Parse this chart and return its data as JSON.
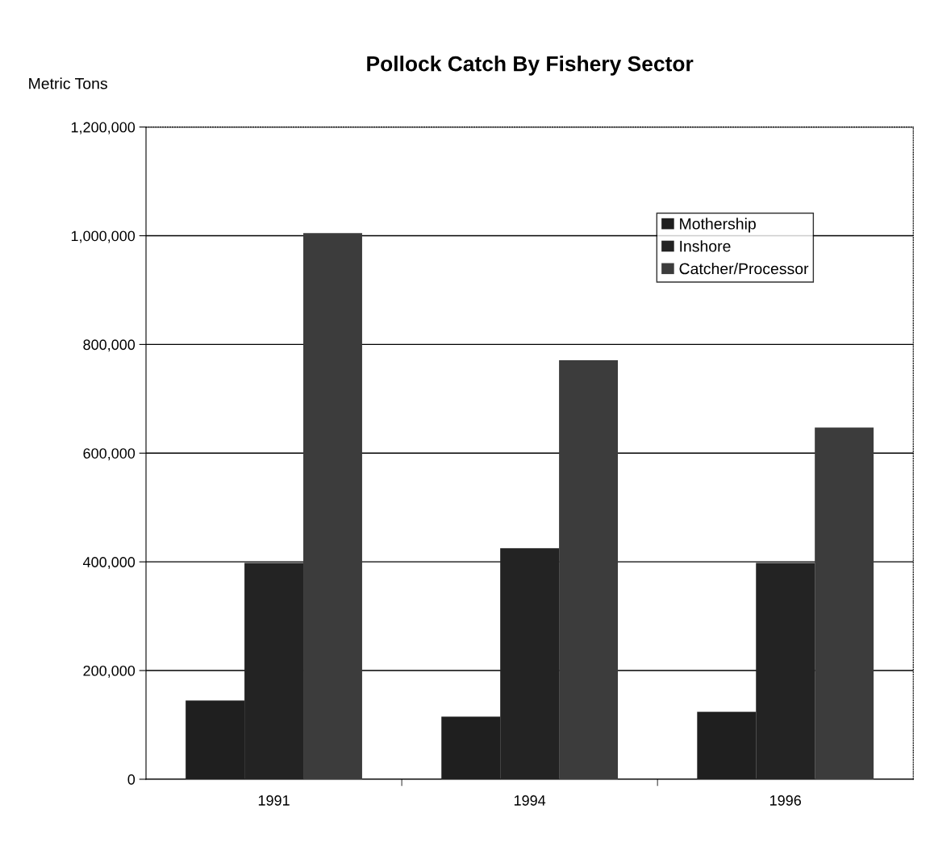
{
  "chart_data": {
    "type": "bar",
    "title": "Pollock Catch By Fishery Sector",
    "ylabel": "Metric Tons",
    "categories": [
      "1991",
      "1994",
      "1996"
    ],
    "series": [
      {
        "name": "Mothership",
        "color": "#1f1f1f",
        "values": [
          145000,
          115000,
          124000
        ]
      },
      {
        "name": "Inshore",
        "color": "#232323",
        "values": [
          398000,
          425000,
          398000
        ]
      },
      {
        "name": "Catcher/Processor",
        "color": "#3c3c3c",
        "values": [
          1005000,
          771000,
          647000
        ]
      }
    ],
    "ylim": [
      0,
      1200000
    ],
    "yticks": [
      0,
      {
        "value": 200000,
        "label": "200,000"
      },
      {
        "value": 400000,
        "label": "400,000"
      },
      {
        "value": 600000,
        "label": "600,000"
      },
      {
        "value": 800000,
        "label": "800,000"
      },
      {
        "value": 1000000,
        "label": "1,000,000"
      },
      {
        "value": 1200000,
        "label": "1,200,000"
      }
    ],
    "grid": "y",
    "legend": "top right"
  }
}
